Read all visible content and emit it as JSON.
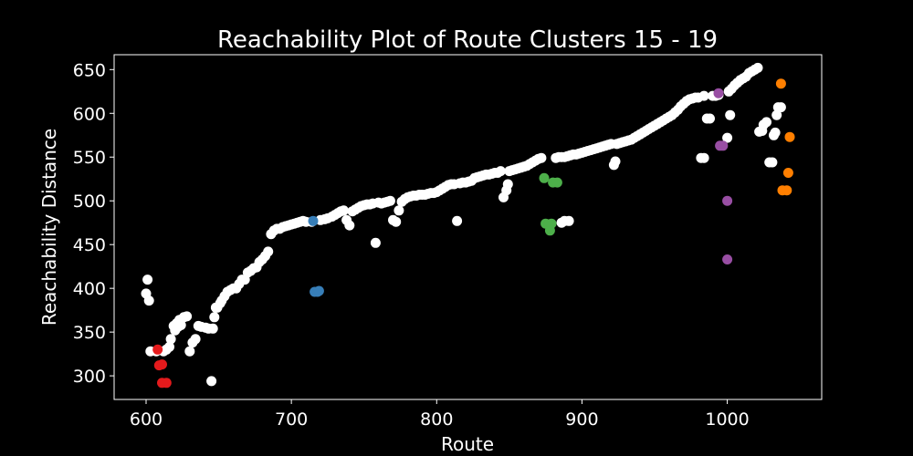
{
  "chart_data": {
    "type": "scatter",
    "title": "Reachability Plot of Route Clusters 15 - 19",
    "xlabel": "Route",
    "ylabel": "Reachability Distance",
    "xlim": [
      578,
      1065
    ],
    "ylim": [
      273,
      667
    ],
    "xticks": [
      600,
      700,
      800,
      900,
      1000
    ],
    "yticks": [
      300,
      350,
      400,
      450,
      500,
      550,
      600,
      650
    ],
    "grid": false,
    "legend": "none",
    "background": "#000000",
    "series": [
      {
        "color": "#ffffff",
        "points": [
          [
            600,
            394
          ],
          [
            601,
            410
          ],
          [
            602,
            386
          ],
          [
            603,
            328
          ],
          [
            607,
            328
          ],
          [
            612,
            328
          ],
          [
            614,
            330
          ],
          [
            616,
            333
          ],
          [
            617,
            342
          ],
          [
            619,
            357
          ],
          [
            620,
            352
          ],
          [
            621,
            360
          ],
          [
            622,
            356
          ],
          [
            623,
            364
          ],
          [
            624,
            358
          ],
          [
            626,
            367
          ],
          [
            628,
            368
          ],
          [
            630,
            328
          ],
          [
            632,
            338
          ],
          [
            634,
            342
          ],
          [
            636,
            357
          ],
          [
            638,
            356
          ],
          [
            641,
            355
          ],
          [
            643,
            354
          ],
          [
            645,
            294
          ],
          [
            646,
            354
          ],
          [
            647,
            367
          ],
          [
            648,
            378
          ],
          [
            649,
            378
          ],
          [
            651,
            383
          ],
          [
            652,
            386
          ],
          [
            654,
            391
          ],
          [
            656,
            396
          ],
          [
            658,
            398
          ],
          [
            660,
            400
          ],
          [
            662,
            400
          ],
          [
            664,
            405
          ],
          [
            666,
            410
          ],
          [
            668,
            410
          ],
          [
            670,
            418
          ],
          [
            672,
            420
          ],
          [
            674,
            423
          ],
          [
            676,
            424
          ],
          [
            678,
            430
          ],
          [
            680,
            433
          ],
          [
            682,
            437
          ],
          [
            684,
            442
          ],
          [
            686,
            462
          ],
          [
            688,
            466
          ],
          [
            690,
            468
          ],
          [
            692,
            468
          ],
          [
            694,
            470
          ],
          [
            696,
            471
          ],
          [
            698,
            472
          ],
          [
            700,
            473
          ],
          [
            702,
            474
          ],
          [
            704,
            475
          ],
          [
            706,
            476
          ],
          [
            708,
            477
          ],
          [
            710,
            476
          ],
          [
            714,
            476
          ],
          [
            720,
            478
          ],
          [
            723,
            479
          ],
          [
            725,
            480
          ],
          [
            728,
            482
          ],
          [
            730,
            484
          ],
          [
            732,
            486
          ],
          [
            734,
            488
          ],
          [
            736,
            489
          ],
          [
            738,
            478
          ],
          [
            740,
            472
          ],
          [
            742,
            488
          ],
          [
            744,
            490
          ],
          [
            746,
            492
          ],
          [
            748,
            494
          ],
          [
            750,
            495
          ],
          [
            752,
            496
          ],
          [
            754,
            496
          ],
          [
            756,
            497
          ],
          [
            758,
            452
          ],
          [
            760,
            498
          ],
          [
            762,
            497
          ],
          [
            764,
            498
          ],
          [
            766,
            499
          ],
          [
            768,
            500
          ],
          [
            770,
            478
          ],
          [
            772,
            476
          ],
          [
            774,
            489
          ],
          [
            776,
            499
          ],
          [
            778,
            502
          ],
          [
            780,
            504
          ],
          [
            782,
            505
          ],
          [
            784,
            506
          ],
          [
            786,
            506
          ],
          [
            788,
            507
          ],
          [
            790,
            507
          ],
          [
            792,
            507
          ],
          [
            794,
            508
          ],
          [
            796,
            509
          ],
          [
            798,
            509
          ],
          [
            800,
            510
          ],
          [
            802,
            512
          ],
          [
            804,
            514
          ],
          [
            806,
            516
          ],
          [
            808,
            518
          ],
          [
            810,
            519
          ],
          [
            812,
            519
          ],
          [
            814,
            477
          ],
          [
            816,
            520
          ],
          [
            818,
            521
          ],
          [
            820,
            521
          ],
          [
            822,
            522
          ],
          [
            824,
            523
          ],
          [
            826,
            526
          ],
          [
            828,
            527
          ],
          [
            830,
            528
          ],
          [
            832,
            529
          ],
          [
            834,
            530
          ],
          [
            836,
            530
          ],
          [
            838,
            531
          ],
          [
            840,
            532
          ],
          [
            842,
            532
          ],
          [
            844,
            534
          ],
          [
            846,
            504
          ],
          [
            848,
            512
          ],
          [
            849,
            519
          ],
          [
            850,
            534
          ],
          [
            852,
            535
          ],
          [
            854,
            536
          ],
          [
            856,
            537
          ],
          [
            858,
            538
          ],
          [
            860,
            539
          ],
          [
            862,
            540
          ],
          [
            864,
            542
          ],
          [
            866,
            544
          ],
          [
            868,
            546
          ],
          [
            870,
            548
          ],
          [
            872,
            549
          ],
          [
            886,
            475
          ],
          [
            888,
            477
          ],
          [
            891,
            477
          ],
          [
            882,
            549
          ],
          [
            884,
            550
          ],
          [
            886,
            550
          ],
          [
            888,
            550
          ],
          [
            890,
            551
          ],
          [
            892,
            552
          ],
          [
            894,
            553
          ],
          [
            896,
            553
          ],
          [
            898,
            554
          ],
          [
            900,
            555
          ],
          [
            902,
            556
          ],
          [
            904,
            557
          ],
          [
            906,
            558
          ],
          [
            908,
            559
          ],
          [
            910,
            560
          ],
          [
            912,
            561
          ],
          [
            914,
            562
          ],
          [
            916,
            563
          ],
          [
            918,
            564
          ],
          [
            920,
            565
          ],
          [
            922,
            541
          ],
          [
            923,
            545
          ],
          [
            924,
            565
          ],
          [
            926,
            566
          ],
          [
            928,
            567
          ],
          [
            930,
            568
          ],
          [
            932,
            569
          ],
          [
            934,
            570
          ],
          [
            936,
            572
          ],
          [
            938,
            574
          ],
          [
            940,
            576
          ],
          [
            942,
            578
          ],
          [
            944,
            580
          ],
          [
            946,
            582
          ],
          [
            948,
            584
          ],
          [
            950,
            586
          ],
          [
            952,
            588
          ],
          [
            954,
            590
          ],
          [
            956,
            592
          ],
          [
            958,
            594
          ],
          [
            960,
            596
          ],
          [
            962,
            598
          ],
          [
            964,
            601
          ],
          [
            966,
            604
          ],
          [
            968,
            608
          ],
          [
            970,
            611
          ],
          [
            972,
            614
          ],
          [
            974,
            616
          ],
          [
            976,
            617
          ],
          [
            978,
            618
          ],
          [
            980,
            618
          ],
          [
            982,
            549
          ],
          [
            984,
            620
          ],
          [
            984,
            549
          ],
          [
            986,
            594
          ],
          [
            988,
            594
          ],
          [
            990,
            620
          ],
          [
            992,
            620
          ],
          [
            994,
            621
          ],
          [
            1000,
            572
          ],
          [
            1002,
            598
          ],
          [
            1001,
            625
          ],
          [
            1003,
            628
          ],
          [
            1005,
            632
          ],
          [
            1007,
            635
          ],
          [
            1009,
            638
          ],
          [
            1011,
            640
          ],
          [
            1013,
            642
          ],
          [
            1015,
            646
          ],
          [
            1017,
            648
          ],
          [
            1019,
            650
          ],
          [
            1021,
            652
          ],
          [
            1022,
            579
          ],
          [
            1024,
            580
          ],
          [
            1025,
            587
          ],
          [
            1027,
            590
          ],
          [
            1029,
            544
          ],
          [
            1031,
            544
          ],
          [
            1032,
            575
          ],
          [
            1033,
            578
          ],
          [
            1034,
            598
          ],
          [
            1035,
            607
          ],
          [
            1037,
            607
          ]
        ]
      },
      {
        "color": "#e41a1c",
        "points": [
          [
            608,
            330
          ],
          [
            609,
            312
          ],
          [
            611,
            313
          ],
          [
            611,
            292
          ],
          [
            614,
            292
          ]
        ]
      },
      {
        "color": "#377eb8",
        "points": [
          [
            715,
            477
          ],
          [
            716,
            396
          ],
          [
            718,
            396
          ],
          [
            719,
            397
          ]
        ]
      },
      {
        "color": "#4daf4a",
        "points": [
          [
            874,
            526
          ],
          [
            875,
            474
          ],
          [
            877,
            473
          ],
          [
            878,
            466
          ],
          [
            879,
            474
          ],
          [
            880,
            521
          ],
          [
            883,
            521
          ]
        ]
      },
      {
        "color": "#984ea3",
        "points": [
          [
            994,
            623
          ],
          [
            995,
            563
          ],
          [
            997,
            563
          ],
          [
            1000,
            500
          ],
          [
            1000,
            433
          ]
        ]
      },
      {
        "color": "#ff7f00",
        "points": [
          [
            1037,
            634
          ],
          [
            1038,
            512
          ],
          [
            1041,
            512
          ],
          [
            1042,
            532
          ],
          [
            1043,
            573
          ]
        ]
      }
    ]
  }
}
